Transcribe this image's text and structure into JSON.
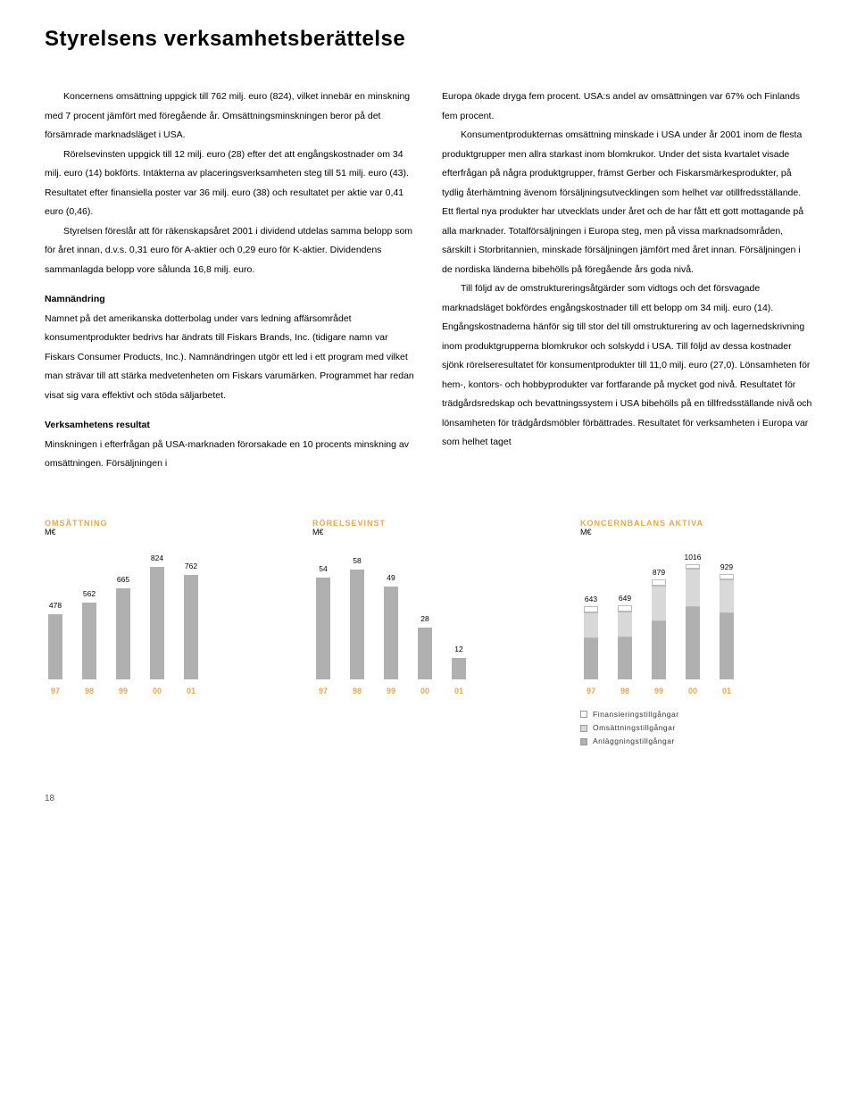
{
  "title": "Styrelsens verksamhetsberättelse",
  "left_col": {
    "p1": "Koncernens omsättning uppgick till 762 milj. euro (824), vilket innebär en minskning med 7 procent jämfört med föregående år. Omsättningsminskningen beror på det försämrade marknadsläget i USA.",
    "p2": "Rörelsevinsten uppgick till 12 milj. euro (28) efter det att engångskostnader om 34 milj. euro (14) bokförts. Intäkterna av placeringsverksamheten steg till 51 milj. euro (43). Resultatet efter finansiella poster var 36 milj. euro (38) och resultatet per aktie var 0,41 euro (0,46).",
    "p3": "Styrelsen föreslår att för räkenskapsåret 2001 i dividend utdelas samma belopp som för året innan, d.v.s. 0,31 euro för A-aktier och 0,29 euro för K-aktier. Dividendens sammanlagda belopp vore sålunda 16,8 milj. euro.",
    "h1": "Namnändring",
    "p4": "Namnet på det amerikanska dotterbolag under vars ledning affärsområdet konsumentprodukter bedrivs har ändrats till Fiskars Brands, Inc. (tidigare namn var Fiskars Consumer Products, Inc.). Namnändringen utgör ett led i ett program med vilket man strävar till att stärka medvetenheten om Fiskars varumärken. Programmet har redan visat sig vara effektivt och stöda säljarbetet.",
    "h2": "Verksamhetens resultat",
    "p5": "Minskningen i efterfrågan på USA-marknaden förorsakade en 10 procents minskning av omsättningen. Försäljningen i"
  },
  "right_col": {
    "p1": "Europa ökade dryga fem procent. USA:s andel av omsättningen var 67% och Finlands fem procent.",
    "p2": "Konsumentprodukternas omsättning minskade i USA under år 2001 inom de flesta produktgrupper men allra starkast inom blomkrukor. Under det sista kvartalet visade efterfrågan på några produktgrupper, främst Gerber och Fiskarsmärkesprodukter, på tydlig återhämtning ävenom försäljningsutvecklingen som helhet var otillfredsställande. Ett flertal nya produkter har utvecklats under året och de har fått ett gott mottagande på alla marknader. Totalförsäljningen i Europa steg, men på vissa marknadsområden, särskilt i Storbritannien, minskade försäljningen jämfört med året innan. Försäljningen i de nordiska länderna bibehölls på föregående års goda nivå.",
    "p3": "Till följd av de omstruktureringsåtgärder som vidtogs och det försvagade marknadsläget bokfördes engångskostnader till ett belopp om 34 milj. euro (14). Engångskostnaderna hänför sig till stor del till omstrukturering av och lagernedskrivning inom produktgrupperna blomkrukor och solskydd i USA. Till följd av dessa kostnader sjönk rörelseresultatet för konsumentprodukter till 11,0 milj. euro (27,0). Lönsamheten för hem-, kontors- och hobbyprodukter var fortfarande på mycket god nivå. Resultatet för trädgårdsredskap och bevattningssystem i USA bibehölls på en tillfredsställande nivå och lönsamheten för trädgårdsmöbler förbättrades. Resultatet för verksamheten i Europa var som helhet taget"
  },
  "chart1": {
    "title": "OMSÄTTNING",
    "unit": "M€",
    "type": "bar",
    "categories": [
      "97",
      "98",
      "99",
      "00",
      "01"
    ],
    "values": [
      478,
      562,
      665,
      824,
      762
    ],
    "max": 900,
    "bar_color": "#b0b0b0",
    "highlight_color": "#d8d8d8",
    "accent_color": "#e8a84a"
  },
  "chart2": {
    "title": "RÖRELSEVINST",
    "unit": "M€",
    "type": "bar",
    "categories": [
      "97",
      "98",
      "99",
      "00",
      "01"
    ],
    "values": [
      54,
      58,
      49,
      28,
      12
    ],
    "max": 65,
    "bar_color": "#b0b0b0",
    "accent_color": "#e8a84a"
  },
  "chart3": {
    "title": "KONCERNBALANS AKTIVA",
    "unit": "M€",
    "type": "stacked-bar",
    "categories": [
      "97",
      "98",
      "99",
      "00",
      "01"
    ],
    "totals": [
      643,
      649,
      879,
      1016,
      929
    ],
    "max": 1100,
    "series": [
      {
        "name": "Anläggningstillgångar",
        "color": "#b0b0b0",
        "values": [
          370,
          378,
          520,
          640,
          590
        ]
      },
      {
        "name": "Omsättningstillgångar",
        "color": "#d8d8d8",
        "values": [
          220,
          218,
          300,
          330,
          290
        ]
      },
      {
        "name": "Finansieringstillgångar",
        "color": "#ffffff",
        "values": [
          53,
          53,
          59,
          46,
          49
        ]
      }
    ],
    "accent_color": "#e8a84a"
  },
  "legend": {
    "items": [
      {
        "label": "Finansieringstillgångar",
        "color": "#ffffff"
      },
      {
        "label": "Omsättningstillgångar",
        "color": "#d8d8d8"
      },
      {
        "label": "Anläggningstillgångar",
        "color": "#b0b0b0"
      }
    ]
  },
  "page_number": "18"
}
